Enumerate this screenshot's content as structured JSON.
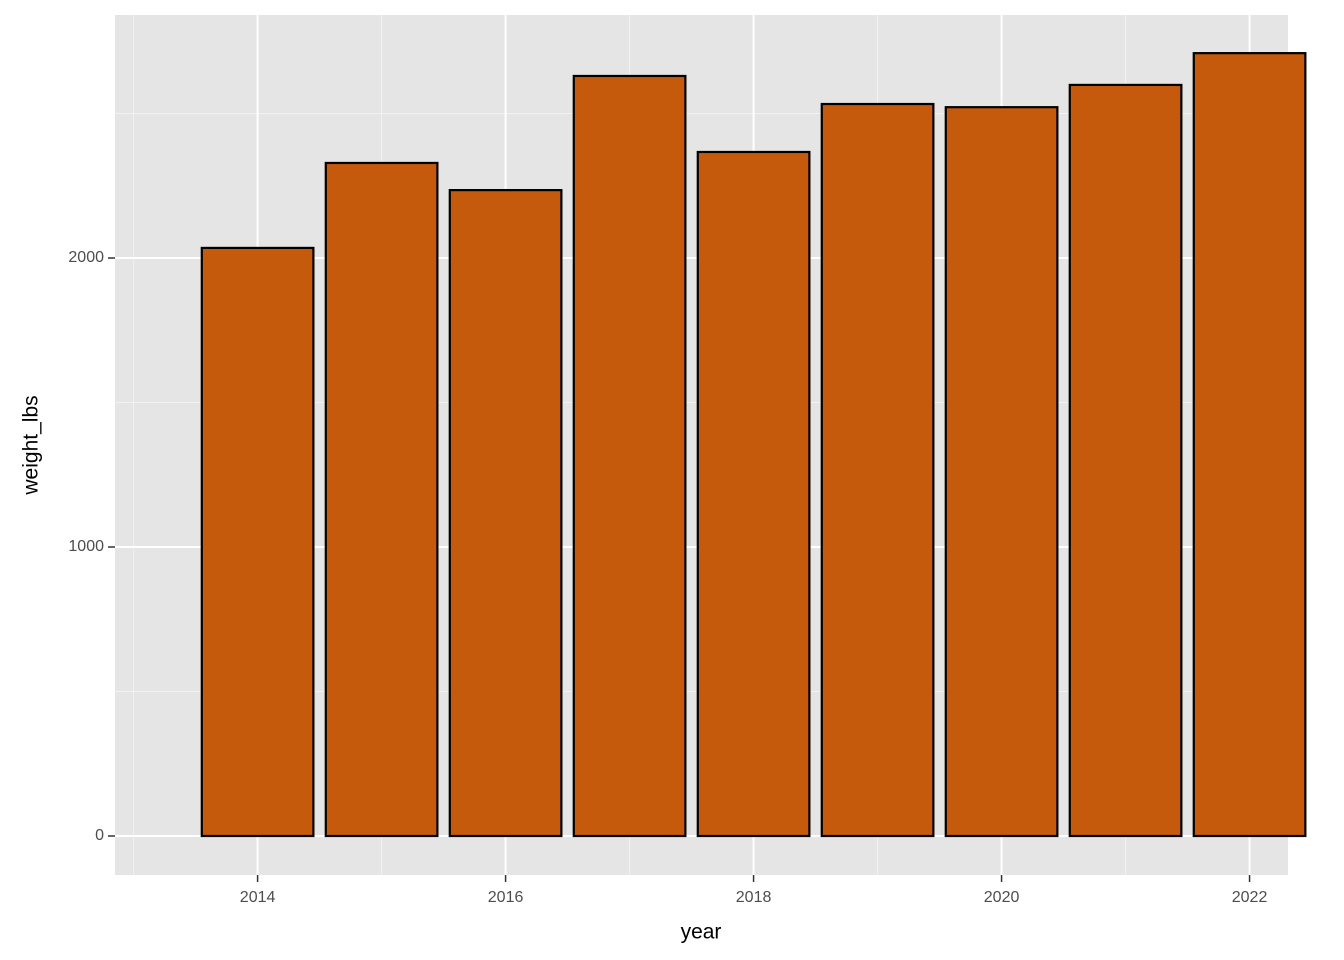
{
  "chart_data": {
    "type": "bar",
    "x_label": "year",
    "y_label": "weight_lbs",
    "x": [
      2014,
      2015,
      2016,
      2017,
      2018,
      2019,
      2020,
      2021,
      2022
    ],
    "values": [
      2035,
      2329,
      2235,
      2630,
      2367,
      2533,
      2522,
      2599,
      2709
    ],
    "color": "#c55a0d",
    "edge_color": "#000000",
    "xlim": [
      2012.85,
      2022.31
    ],
    "xticks": [
      2014,
      2016,
      2018,
      2020,
      2022
    ],
    "x_minor_ticks": [
      2013,
      2015,
      2017,
      2019,
      2021
    ],
    "ylim": [
      -135,
      2841
    ],
    "yticks": [
      0,
      1000,
      2000
    ],
    "y_minor_ticks": [
      500,
      1500,
      2500
    ],
    "grid": true
  }
}
